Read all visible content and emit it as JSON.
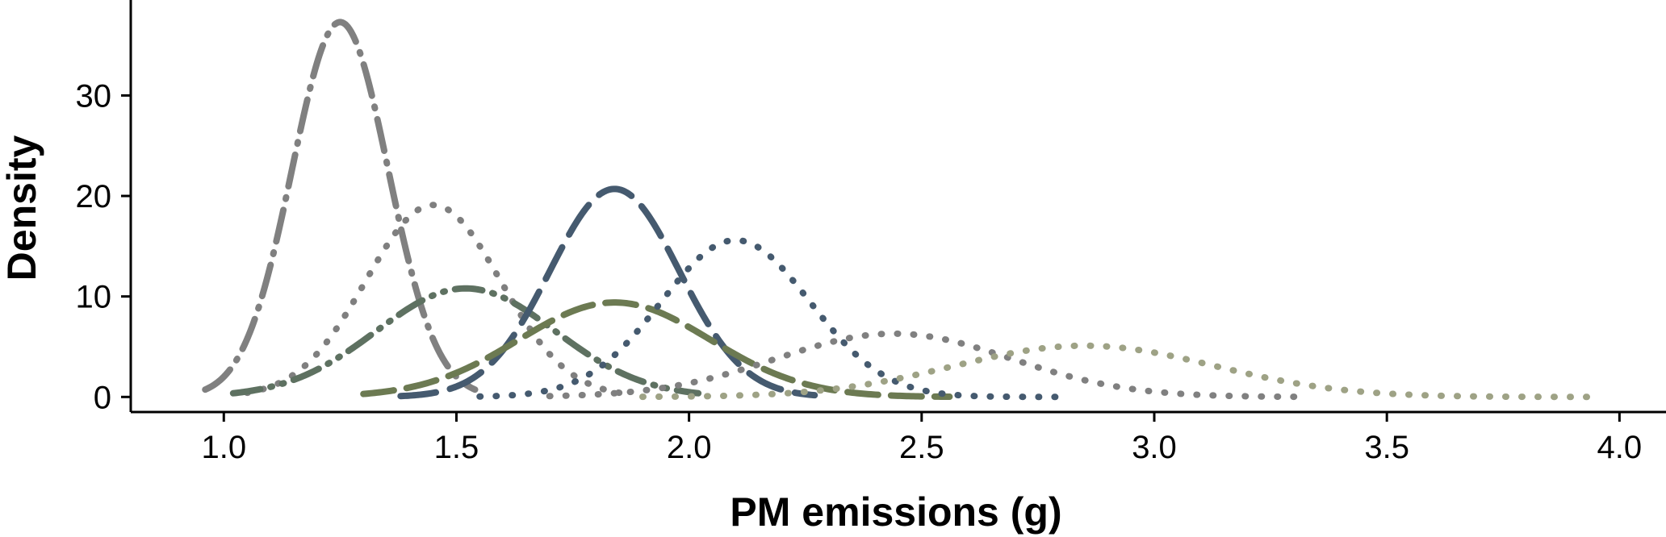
{
  "chart_data": {
    "type": "line",
    "title": "",
    "xlabel": "PM emissions (g)",
    "ylabel": "Density",
    "xlim": [
      0.8,
      4.1
    ],
    "ylim": [
      -1.5,
      39.5
    ],
    "xticks": [
      1.0,
      1.5,
      2.0,
      2.5,
      3.0,
      3.5,
      4.0
    ],
    "xtick_labels": [
      "1.0",
      "1.5",
      "2.0",
      "2.5",
      "3.0",
      "3.5",
      "4.0"
    ],
    "yticks": [
      0,
      10,
      20,
      30
    ],
    "ytick_labels": [
      "0",
      "10",
      "20",
      "30"
    ],
    "grid": false,
    "legend": "none",
    "series": [
      {
        "mean": 1.25,
        "sd": 0.0107,
        "peak": 37.3,
        "x_range": [
          0.96,
          1.54
        ],
        "color": "#808080",
        "style": "dashdot"
      },
      {
        "mean": 1.45,
        "sd": 0.0209,
        "peak": 19.1,
        "x_range": [
          1.05,
          1.85
        ],
        "color": "#7f7f7f",
        "style": "dotted"
      },
      {
        "mean": 1.52,
        "sd": 0.037,
        "peak": 10.8,
        "x_range": [
          1.02,
          2.02
        ],
        "color": "#5e7161",
        "style": "dashdotdot"
      },
      {
        "mean": 1.84,
        "sd": 0.0193,
        "peak": 20.7,
        "x_range": [
          1.38,
          2.27
        ],
        "color": "#455a6f",
        "style": "longdash"
      },
      {
        "mean": 1.84,
        "sd": 0.0423,
        "peak": 9.4,
        "x_range": [
          1.3,
          2.56
        ],
        "color": "#6c7a52",
        "style": "dashed"
      },
      {
        "mean": 2.1,
        "sd": 0.0256,
        "peak": 15.6,
        "x_range": [
          1.55,
          2.82
        ],
        "color": "#455a6f",
        "style": "dotted"
      },
      {
        "mean": 2.44,
        "sd": 0.0634,
        "peak": 6.3,
        "x_range": [
          1.7,
          3.31
        ],
        "color": "#808080",
        "style": "dotted"
      },
      {
        "mean": 2.85,
        "sd": 0.078,
        "peak": 5.1,
        "x_range": [
          1.9,
          3.95
        ],
        "color": "#9ea285",
        "style": "dotted"
      }
    ]
  }
}
